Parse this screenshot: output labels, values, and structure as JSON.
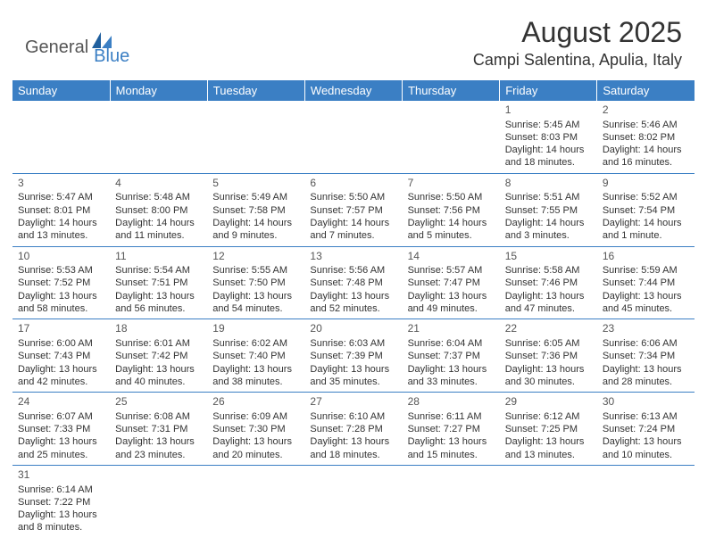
{
  "brand": {
    "general": "General",
    "blue": "Blue"
  },
  "title": "August 2025",
  "location": "Campi Salentina, Apulia, Italy",
  "colors": {
    "header_bg": "#3b7fc4",
    "header_text": "#ffffff",
    "border": "#3b7fc4",
    "text": "#333333",
    "logo_blue": "#3b7fc4",
    "logo_gray": "#555555"
  },
  "weekdays": [
    "Sunday",
    "Monday",
    "Tuesday",
    "Wednesday",
    "Thursday",
    "Friday",
    "Saturday"
  ],
  "weeks": [
    [
      null,
      null,
      null,
      null,
      null,
      {
        "n": "1",
        "sunrise": "5:45 AM",
        "sunset": "8:03 PM",
        "daylight": "14 hours and 18 minutes."
      },
      {
        "n": "2",
        "sunrise": "5:46 AM",
        "sunset": "8:02 PM",
        "daylight": "14 hours and 16 minutes."
      }
    ],
    [
      {
        "n": "3",
        "sunrise": "5:47 AM",
        "sunset": "8:01 PM",
        "daylight": "14 hours and 13 minutes."
      },
      {
        "n": "4",
        "sunrise": "5:48 AM",
        "sunset": "8:00 PM",
        "daylight": "14 hours and 11 minutes."
      },
      {
        "n": "5",
        "sunrise": "5:49 AM",
        "sunset": "7:58 PM",
        "daylight": "14 hours and 9 minutes."
      },
      {
        "n": "6",
        "sunrise": "5:50 AM",
        "sunset": "7:57 PM",
        "daylight": "14 hours and 7 minutes."
      },
      {
        "n": "7",
        "sunrise": "5:50 AM",
        "sunset": "7:56 PM",
        "daylight": "14 hours and 5 minutes."
      },
      {
        "n": "8",
        "sunrise": "5:51 AM",
        "sunset": "7:55 PM",
        "daylight": "14 hours and 3 minutes."
      },
      {
        "n": "9",
        "sunrise": "5:52 AM",
        "sunset": "7:54 PM",
        "daylight": "14 hours and 1 minute."
      }
    ],
    [
      {
        "n": "10",
        "sunrise": "5:53 AM",
        "sunset": "7:52 PM",
        "daylight": "13 hours and 58 minutes."
      },
      {
        "n": "11",
        "sunrise": "5:54 AM",
        "sunset": "7:51 PM",
        "daylight": "13 hours and 56 minutes."
      },
      {
        "n": "12",
        "sunrise": "5:55 AM",
        "sunset": "7:50 PM",
        "daylight": "13 hours and 54 minutes."
      },
      {
        "n": "13",
        "sunrise": "5:56 AM",
        "sunset": "7:48 PM",
        "daylight": "13 hours and 52 minutes."
      },
      {
        "n": "14",
        "sunrise": "5:57 AM",
        "sunset": "7:47 PM",
        "daylight": "13 hours and 49 minutes."
      },
      {
        "n": "15",
        "sunrise": "5:58 AM",
        "sunset": "7:46 PM",
        "daylight": "13 hours and 47 minutes."
      },
      {
        "n": "16",
        "sunrise": "5:59 AM",
        "sunset": "7:44 PM",
        "daylight": "13 hours and 45 minutes."
      }
    ],
    [
      {
        "n": "17",
        "sunrise": "6:00 AM",
        "sunset": "7:43 PM",
        "daylight": "13 hours and 42 minutes."
      },
      {
        "n": "18",
        "sunrise": "6:01 AM",
        "sunset": "7:42 PM",
        "daylight": "13 hours and 40 minutes."
      },
      {
        "n": "19",
        "sunrise": "6:02 AM",
        "sunset": "7:40 PM",
        "daylight": "13 hours and 38 minutes."
      },
      {
        "n": "20",
        "sunrise": "6:03 AM",
        "sunset": "7:39 PM",
        "daylight": "13 hours and 35 minutes."
      },
      {
        "n": "21",
        "sunrise": "6:04 AM",
        "sunset": "7:37 PM",
        "daylight": "13 hours and 33 minutes."
      },
      {
        "n": "22",
        "sunrise": "6:05 AM",
        "sunset": "7:36 PM",
        "daylight": "13 hours and 30 minutes."
      },
      {
        "n": "23",
        "sunrise": "6:06 AM",
        "sunset": "7:34 PM",
        "daylight": "13 hours and 28 minutes."
      }
    ],
    [
      {
        "n": "24",
        "sunrise": "6:07 AM",
        "sunset": "7:33 PM",
        "daylight": "13 hours and 25 minutes."
      },
      {
        "n": "25",
        "sunrise": "6:08 AM",
        "sunset": "7:31 PM",
        "daylight": "13 hours and 23 minutes."
      },
      {
        "n": "26",
        "sunrise": "6:09 AM",
        "sunset": "7:30 PM",
        "daylight": "13 hours and 20 minutes."
      },
      {
        "n": "27",
        "sunrise": "6:10 AM",
        "sunset": "7:28 PM",
        "daylight": "13 hours and 18 minutes."
      },
      {
        "n": "28",
        "sunrise": "6:11 AM",
        "sunset": "7:27 PM",
        "daylight": "13 hours and 15 minutes."
      },
      {
        "n": "29",
        "sunrise": "6:12 AM",
        "sunset": "7:25 PM",
        "daylight": "13 hours and 13 minutes."
      },
      {
        "n": "30",
        "sunrise": "6:13 AM",
        "sunset": "7:24 PM",
        "daylight": "13 hours and 10 minutes."
      }
    ],
    [
      {
        "n": "31",
        "sunrise": "6:14 AM",
        "sunset": "7:22 PM",
        "daylight": "13 hours and 8 minutes."
      },
      null,
      null,
      null,
      null,
      null,
      null
    ]
  ],
  "labels": {
    "sunrise": "Sunrise: ",
    "sunset": "Sunset: ",
    "daylight": "Daylight: "
  }
}
